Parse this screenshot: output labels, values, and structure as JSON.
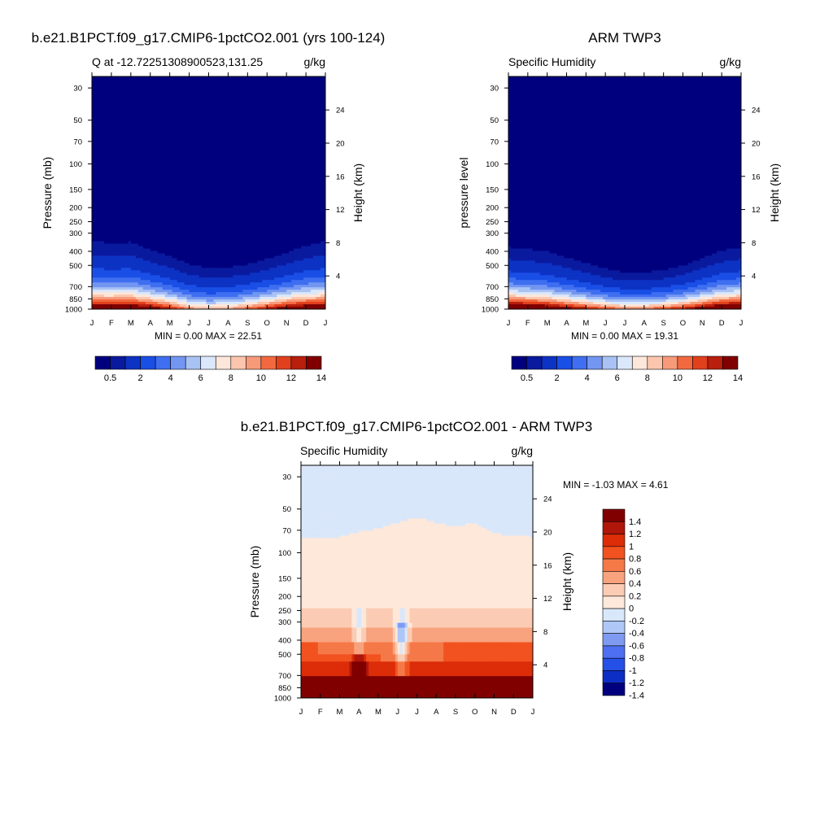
{
  "panels": [
    {
      "title": "b.e21.B1PCT.f09_g17.CMIP6-1pctCO2.001 (yrs 100-124)",
      "subtitle_left": "Q at -12.72251308900523,131.25",
      "subtitle_right": "g/kg",
      "ylabel_left": "Pressure (mb)",
      "ylabel_right": "Height (km)",
      "stats": "MIN =   0.00 MAX =  22.51"
    },
    {
      "title": "ARM TWP3",
      "subtitle_left": "Specific Humidity",
      "subtitle_right": "g/kg",
      "ylabel_left": "pressure level",
      "ylabel_right": "Height (km)",
      "stats": "MIN =   0.00 MAX =  19.31"
    },
    {
      "title": "b.e21.B1PCT.f09_g17.CMIP6-1pctCO2.001 - ARM TWP3",
      "subtitle_left": "Specific Humidity",
      "subtitle_right": "g/kg",
      "ylabel_left": "Pressure (mb)",
      "ylabel_right": "Height (km)",
      "stats": "MIN =  -1.03 MAX =   4.61"
    }
  ],
  "chart_data": [
    {
      "type": "heatmap",
      "title": "b.e21.B1PCT.f09_g17.CMIP6-1pctCO2.001 (yrs 100-124)",
      "variable": "Q at -12.72251308900523,131.25",
      "units": "g/kg",
      "xlabel": "",
      "ylabel": "Pressure (mb)",
      "ylabel_right": "Height (km)",
      "x_ticks": [
        "J",
        "F",
        "M",
        "A",
        "M",
        "J",
        "J",
        "A",
        "S",
        "O",
        "N",
        "D",
        "J"
      ],
      "pressure_ticks": [
        30,
        50,
        70,
        100,
        150,
        200,
        250,
        300,
        400,
        500,
        700,
        850,
        1000
      ],
      "height_ticks": [
        4,
        8,
        12,
        16,
        20,
        24
      ],
      "ylim": [
        1000,
        25
      ],
      "yscale": "log",
      "min": 0.0,
      "max": 22.51,
      "surface_q": [
        16,
        16,
        16.5,
        15,
        13,
        10,
        9,
        9.5,
        11,
        13,
        15,
        16,
        16
      ],
      "scale_height": [
        2.35,
        2.3,
        2.3,
        2.1,
        1.95,
        1.8,
        1.7,
        1.7,
        1.75,
        1.85,
        2.0,
        2.2,
        2.35
      ],
      "colorbar_labels": [
        "0.5",
        "2",
        "4",
        "6",
        "8",
        "10",
        "12",
        "14"
      ]
    },
    {
      "type": "heatmap",
      "title": "ARM TWP3",
      "variable": "Specific Humidity",
      "units": "g/kg",
      "xlabel": "",
      "ylabel": "pressure level",
      "ylabel_right": "Height (km)",
      "x_ticks": [
        "J",
        "F",
        "M",
        "A",
        "M",
        "J",
        "J",
        "A",
        "S",
        "O",
        "N",
        "D",
        "J"
      ],
      "pressure_ticks": [
        30,
        50,
        70,
        100,
        150,
        200,
        250,
        300,
        400,
        500,
        700,
        850,
        1000
      ],
      "height_ticks": [
        4,
        8,
        12,
        16,
        20,
        24
      ],
      "ylim": [
        1000,
        25
      ],
      "yscale": "log",
      "min": 0.0,
      "max": 19.31,
      "surface_q": [
        17.5,
        17,
        16,
        14.5,
        13,
        11.5,
        10.5,
        10.5,
        11.5,
        13,
        15,
        17,
        17.5
      ],
      "scale_height": [
        2.1,
        2.05,
        2.0,
        1.85,
        1.7,
        1.55,
        1.45,
        1.45,
        1.5,
        1.6,
        1.8,
        2.0,
        2.1
      ],
      "colorbar_labels": [
        "0.5",
        "2",
        "4",
        "6",
        "8",
        "10",
        "12",
        "14"
      ]
    },
    {
      "type": "heatmap",
      "title": "b.e21.B1PCT.f09_g17.CMIP6-1pctCO2.001 - ARM TWP3",
      "variable": "Specific Humidity",
      "units": "g/kg",
      "xlabel": "",
      "ylabel": "Pressure (mb)",
      "ylabel_right": "Height (km)",
      "x_ticks": [
        "J",
        "F",
        "M",
        "A",
        "M",
        "J",
        "J",
        "A",
        "S",
        "O",
        "N",
        "D",
        "J"
      ],
      "pressure_ticks": [
        30,
        50,
        70,
        100,
        150,
        200,
        250,
        300,
        400,
        500,
        700,
        850,
        1000
      ],
      "height_ticks": [
        4,
        8,
        12,
        16,
        20,
        24
      ],
      "ylim": [
        1000,
        25
      ],
      "yscale": "log",
      "min": -1.03,
      "max": 4.61,
      "zero_line_pressure": [
        78,
        78,
        78,
        72,
        68,
        62,
        57,
        62,
        66,
        62,
        74,
        76,
        78
      ],
      "colorbar_labels": [
        "1.4",
        "1.2",
        "1",
        "0.8",
        "0.6",
        "0.4",
        "0.2",
        "0",
        "-0.2",
        "-0.4",
        "-0.6",
        "-0.8",
        "-1",
        "-1.2",
        "-1.4"
      ]
    }
  ],
  "colors": {
    "sequential": [
      "#00007f",
      "#0a1a9e",
      "#0d33c4",
      "#1a4fe6",
      "#3f6ff0",
      "#7396f2",
      "#a9c2f4",
      "#dbe8fb",
      "#fde7da",
      "#fbc6ad",
      "#f79a79",
      "#f2693f",
      "#e1401c",
      "#b81f0c",
      "#800000"
    ],
    "diverging": [
      "#800000",
      "#b1160b",
      "#dc2c08",
      "#f1521f",
      "#f57948",
      "#f8a27e",
      "#fbcbb3",
      "#fde8da",
      "#d9e7fa",
      "#aec7f6",
      "#7f9bf1",
      "#4d6ff0",
      "#2550e8",
      "#0d2ec5",
      "#00007f"
    ]
  }
}
